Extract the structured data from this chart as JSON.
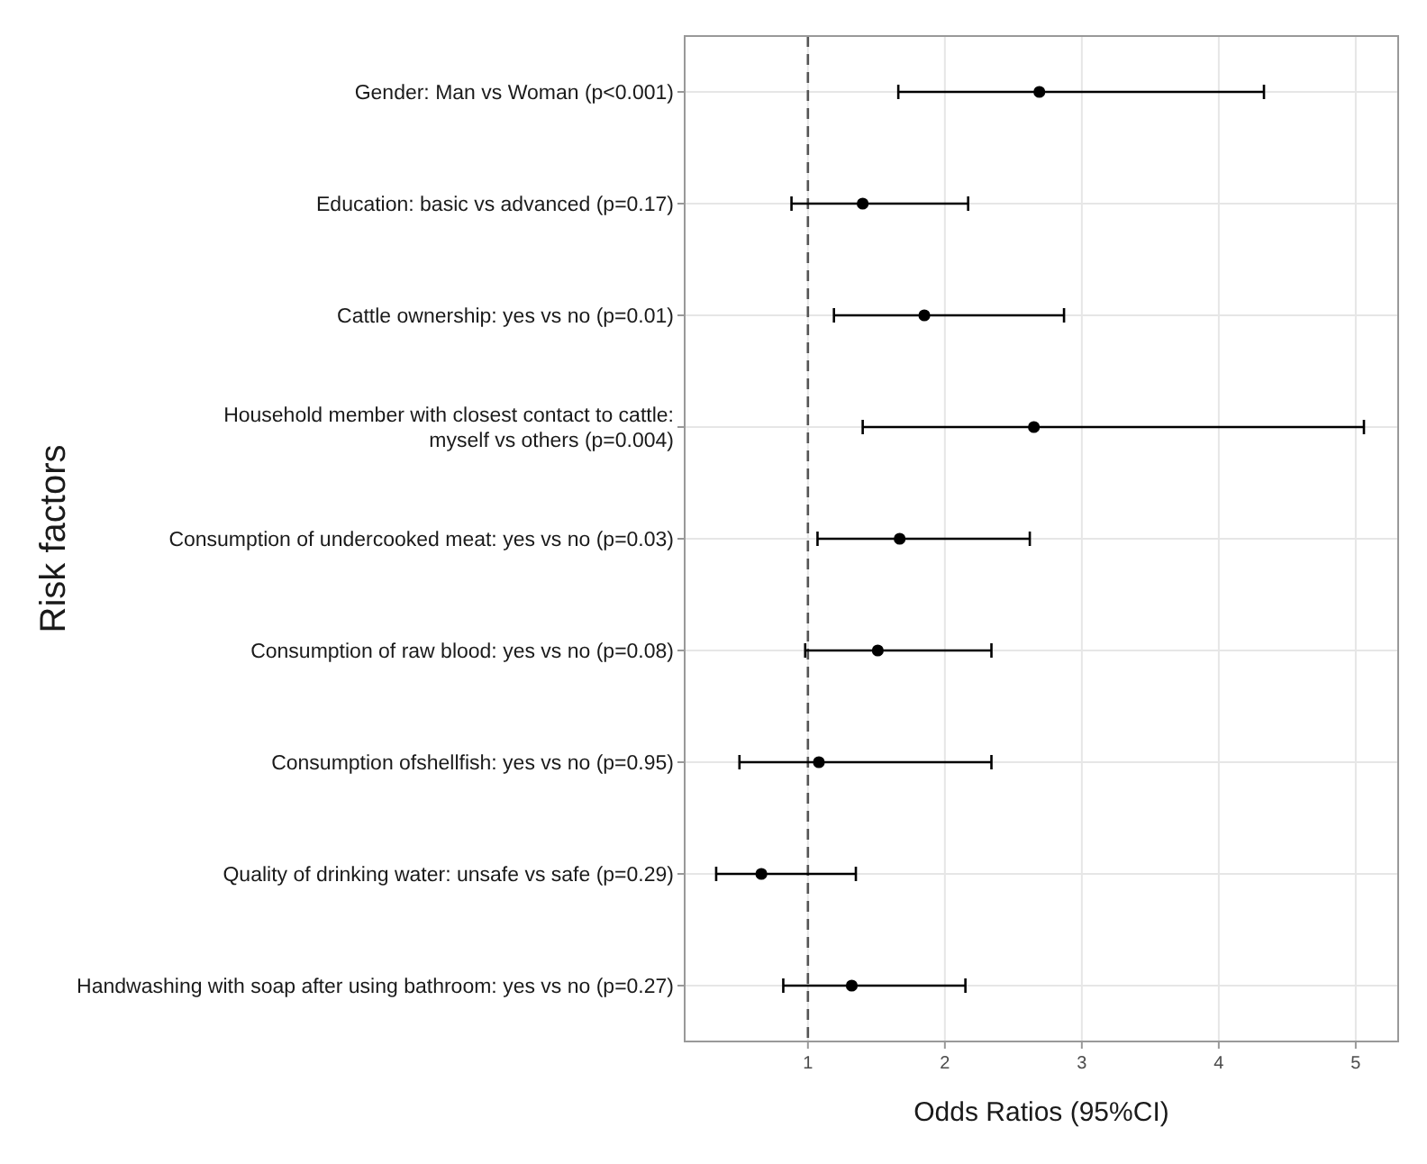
{
  "chart_data": {
    "type": "scatter",
    "orientation": "horizontal",
    "xlabel": "Odds Ratios (95%CI)",
    "ylabel": "Risk factors",
    "categories": [
      "Gender: Man vs Woman (p<0.001)",
      "Education: basic vs advanced (p=0.17)",
      "Cattle ownership: yes vs no (p=0.01)",
      "Household member with closest contact to cattle:\nmyself vs others (p=0.004)",
      "Consumption of undercooked meat: yes vs no (p=0.03)",
      "Consumption of raw blood: yes vs no (p=0.08)",
      "Consumption ofshellfish: yes vs no (p=0.95)",
      "Quality of drinking water: unsafe vs safe (p=0.29)",
      "Handwashing with soap after using bathroom: yes vs no (p=0.27)"
    ],
    "series": [
      {
        "color": "#000000",
        "values": [
          2.69,
          1.4,
          1.85,
          2.65,
          1.67,
          1.51,
          1.08,
          0.66,
          1.32
        ],
        "errors": [
          [
            1.66,
            4.33
          ],
          [
            0.88,
            2.17
          ],
          [
            1.19,
            2.87
          ],
          [
            1.4,
            5.06
          ],
          [
            1.07,
            2.62
          ],
          [
            0.98,
            2.34
          ],
          [
            0.5,
            2.34
          ],
          [
            0.33,
            1.35
          ],
          [
            0.82,
            2.15
          ]
        ]
      }
    ],
    "xlim": [
      0.1,
      5.31
    ],
    "xticks": [
      1,
      2,
      3,
      4,
      5
    ],
    "grid": true,
    "marker": "circle",
    "ref_lines": [
      {
        "axis": "x",
        "value": 1,
        "color": "#555555",
        "line_style": "dashed"
      }
    ]
  }
}
